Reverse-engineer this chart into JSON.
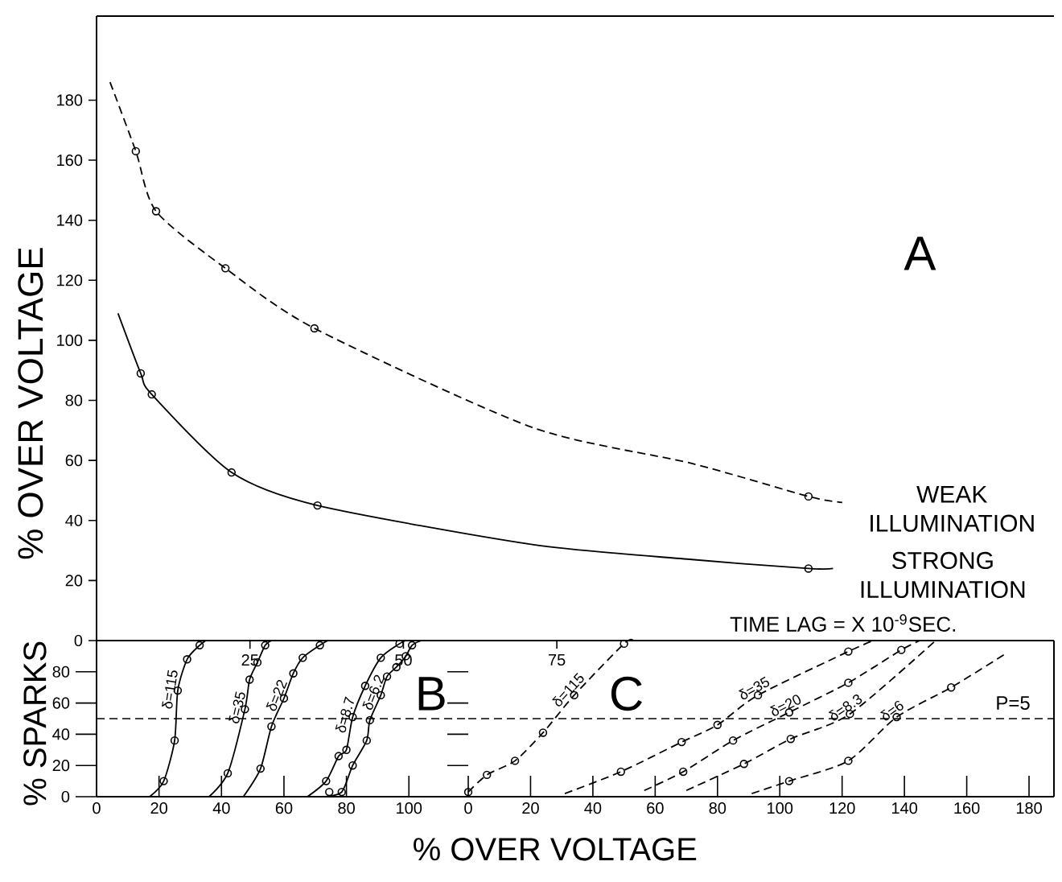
{
  "chart_data": [
    {
      "type": "line",
      "xlabel": "TIME LAG = X 10$^{-9}$SEC.",
      "ylabel": "% OVER VOLTAGE",
      "xlim": [
        0,
        156
      ],
      "ylim": [
        0,
        208
      ],
      "xticks": [
        25,
        50,
        75
      ],
      "yticks": [
        0,
        20,
        40,
        60,
        80,
        100,
        120,
        140,
        160,
        180
      ],
      "annotations": [
        "A"
      ],
      "series": [
        {
          "name": "WEAK ILLUMINATION",
          "type": "line",
          "color": "#000000",
          "line_style": "dashed",
          "marker": "none",
          "x": [
            2.2,
            6.4,
            9.7,
            21,
            35.5,
            71,
            97,
            116,
            121.5
          ],
          "values": [
            186,
            163,
            143,
            124,
            104,
            71,
            59,
            48,
            46
          ]
        },
        {
          "name": "STRONG ILLUMINATION",
          "type": "line",
          "color": "#000000",
          "line_style": "solid",
          "marker": "none",
          "x": [
            3.5,
            7.2,
            9,
            22,
            36,
            71,
            97,
            116,
            120
          ],
          "values": [
            109,
            89,
            82,
            56,
            45,
            32,
            27,
            24,
            24
          ]
        },
        {
          "type": "scatter",
          "color": "#000000",
          "marker": "circle",
          "x": [
            6.4,
            9.7,
            21,
            35.5,
            116
          ],
          "values": [
            163,
            143,
            124,
            104,
            48
          ]
        },
        {
          "type": "scatter",
          "color": "#000000",
          "marker": "circle",
          "x": [
            7.2,
            9,
            22,
            36,
            116
          ],
          "values": [
            89,
            82,
            56,
            45,
            24
          ]
        }
      ]
    },
    {
      "type": "line",
      "ylabel": "% SPARKS",
      "xlim": [
        0,
        119
      ],
      "ylim": [
        0,
        100
      ],
      "xticks": [
        0,
        20,
        40,
        60,
        80,
        100
      ],
      "yticks": [
        0,
        20,
        40,
        60,
        80
      ],
      "annotations": [
        "B"
      ],
      "ref_lines": [
        {
          "axis": "y",
          "value": 50,
          "line_style": "dashed"
        }
      ],
      "series": [
        {
          "name": "δ=115",
          "type": "line",
          "color": "#000000",
          "line_style": "solid",
          "marker": "none",
          "x": [
            17,
            21.5,
            25,
            26,
            29,
            33,
            35
          ],
          "values": [
            0,
            10,
            36,
            68,
            88,
            97,
            100
          ]
        },
        {
          "type": "scatter",
          "color": "#000000",
          "marker": "circle",
          "x": [
            21.5,
            25,
            26,
            29,
            33
          ],
          "values": [
            10,
            36,
            68,
            88,
            97
          ]
        },
        {
          "name": "δ=35",
          "type": "line",
          "color": "#000000",
          "line_style": "solid",
          "marker": "none",
          "x": [
            36,
            42,
            47.5,
            49,
            51.5,
            54,
            56
          ],
          "values": [
            0,
            15,
            56,
            75,
            86,
            97,
            100
          ]
        },
        {
          "type": "scatter",
          "color": "#000000",
          "marker": "circle",
          "x": [
            42,
            47.5,
            49,
            51.5,
            54
          ],
          "values": [
            15,
            56,
            75,
            86,
            97
          ]
        },
        {
          "name": "δ=22",
          "type": "line",
          "color": "#000000",
          "line_style": "solid",
          "marker": "none",
          "x": [
            47,
            52.5,
            56,
            60,
            63,
            66,
            71.5,
            74
          ],
          "values": [
            0,
            18,
            45,
            63,
            79,
            89,
            97,
            100
          ]
        },
        {
          "type": "scatter",
          "color": "#000000",
          "marker": "circle",
          "x": [
            52.5,
            56,
            60,
            63,
            66,
            71.5
          ],
          "values": [
            18,
            45,
            63,
            79,
            89,
            97
          ]
        },
        {
          "name": "δ=8.7",
          "type": "line",
          "color": "#000000",
          "line_style": "solid",
          "marker": "none",
          "x": [
            67.5,
            73.5,
            77.5,
            80,
            82,
            86,
            91,
            97,
            99
          ],
          "values": [
            0,
            10,
            26,
            30,
            51,
            71,
            89,
            98,
            100
          ]
        },
        {
          "type": "scatter",
          "color": "#000000",
          "marker": "circle",
          "x": [
            73.5,
            77.5,
            80,
            82,
            86,
            91,
            97
          ],
          "values": [
            10,
            26,
            30,
            51,
            71,
            89,
            98
          ]
        },
        {
          "name": "δ=6.2",
          "type": "line",
          "color": "#000000",
          "line_style": "solid",
          "marker": "none",
          "x": [
            73,
            78.5,
            82,
            86.5,
            87.5,
            91,
            93,
            96,
            99,
            101,
            104
          ],
          "values": [
            0,
            3,
            20,
            36,
            49,
            65,
            77,
            83,
            90,
            97,
            100
          ]
        },
        {
          "type": "scatter",
          "color": "#000000",
          "marker": "circle",
          "x": [
            74.5,
            78.5,
            82,
            86.5,
            87.5,
            91,
            93,
            96,
            99,
            101
          ],
          "values": [
            3,
            3,
            20,
            36,
            49,
            65,
            77,
            83,
            90,
            97
          ]
        }
      ]
    },
    {
      "type": "line",
      "xlabel": "% OVER VOLTAGE",
      "xlim": [
        0,
        188
      ],
      "ylim": [
        0,
        100
      ],
      "xticks": [
        0,
        20,
        40,
        60,
        80,
        100,
        120,
        140,
        160,
        180
      ],
      "tick_labels": "x",
      "annotations": [
        "C",
        "P=5"
      ],
      "ref_lines": [
        {
          "axis": "y",
          "value": 50,
          "line_style": "dashed"
        }
      ],
      "series": [
        {
          "name": "δ=115",
          "type": "line",
          "color": "#000000",
          "line_style": "dashed",
          "marker": "none",
          "x": [
            0,
            6,
            15,
            24,
            34,
            50,
            53
          ],
          "values": [
            3,
            14,
            23,
            41,
            65,
            98,
            100
          ]
        },
        {
          "type": "scatter",
          "color": "#000000",
          "marker": "circle",
          "x": [
            0,
            6,
            15,
            24,
            34,
            50
          ],
          "values": [
            3,
            14,
            23,
            41,
            65,
            98
          ]
        },
        {
          "name": "δ=35",
          "type": "line",
          "color": "#000000",
          "line_style": "dashed",
          "marker": "none",
          "x": [
            31,
            49,
            68.5,
            80,
            93,
            122,
            130
          ],
          "values": [
            2,
            16,
            35,
            46,
            65,
            93,
            100
          ]
        },
        {
          "type": "scatter",
          "color": "#000000",
          "marker": "circle",
          "x": [
            49,
            68.5,
            80,
            93,
            122
          ],
          "values": [
            16,
            35,
            46,
            65,
            93
          ]
        },
        {
          "name": "δ=20",
          "type": "line",
          "color": "#000000",
          "line_style": "dashed",
          "marker": "none",
          "x": [
            56.5,
            69,
            85,
            103,
            122,
            139,
            145
          ],
          "values": [
            4,
            16,
            36,
            54,
            73,
            94,
            100
          ]
        },
        {
          "type": "scatter",
          "color": "#000000",
          "marker": "circle",
          "x": [
            69,
            85,
            103,
            122,
            139
          ],
          "values": [
            16,
            36,
            54,
            73,
            94
          ]
        },
        {
          "name": "δ=8.3",
          "type": "line",
          "color": "#000000",
          "line_style": "dashed",
          "marker": "none",
          "x": [
            70,
            88.5,
            103.5,
            122.5,
            150
          ],
          "values": [
            4,
            21,
            37,
            53,
            100
          ]
        },
        {
          "type": "scatter",
          "color": "#000000",
          "marker": "circle",
          "x": [
            88.5,
            103.5,
            122.5
          ],
          "values": [
            21,
            37,
            53
          ]
        },
        {
          "name": "δ=6",
          "type": "line",
          "color": "#000000",
          "line_style": "dashed",
          "marker": "none",
          "x": [
            91,
            103,
            122,
            137.5,
            155,
            172
          ],
          "values": [
            2,
            10,
            23,
            51,
            70,
            91
          ]
        },
        {
          "type": "scatter",
          "color": "#000000",
          "marker": "circle",
          "x": [
            103,
            122,
            137.5,
            155
          ],
          "values": [
            10,
            23,
            51,
            70
          ]
        }
      ]
    }
  ]
}
